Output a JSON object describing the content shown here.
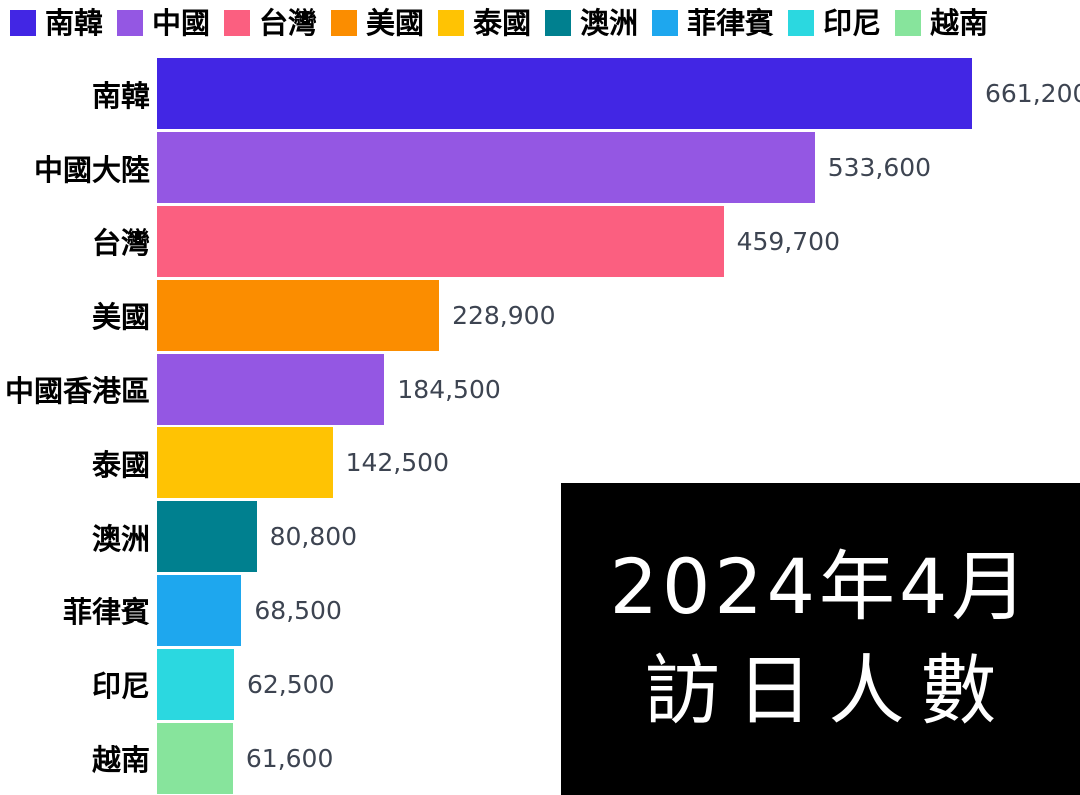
{
  "legend": {
    "items": [
      {
        "label": "南韓",
        "color": "#4226e4"
      },
      {
        "label": "中國",
        "color": "#9457e3"
      },
      {
        "label": "台灣",
        "color": "#fb5f80"
      },
      {
        "label": "美國",
        "color": "#fb8d00"
      },
      {
        "label": "泰國",
        "color": "#ffc303"
      },
      {
        "label": "澳洲",
        "color": "#00808f"
      },
      {
        "label": "菲律賓",
        "color": "#1ea7ee"
      },
      {
        "label": "印尼",
        "color": "#2bd8e0"
      },
      {
        "label": "越南",
        "color": "#87e49c"
      }
    ]
  },
  "chart_data": {
    "type": "bar",
    "orientation": "horizontal",
    "title": "2024年4月 訪日人數",
    "categories": [
      "南韓",
      "中國大陸",
      "台灣",
      "美國",
      "中國香港區",
      "泰國",
      "澳洲",
      "菲律賓",
      "印尼",
      "越南"
    ],
    "values": [
      661200,
      533600,
      459700,
      228900,
      184500,
      142500,
      80800,
      68500,
      62500,
      61600
    ],
    "value_labels": [
      "661,200",
      "533,600",
      "459,700",
      "228,900",
      "184,500",
      "142,500",
      "80,800",
      "68,500",
      "62,500",
      "61,600"
    ],
    "bar_colors": [
      "#4226e4",
      "#9457e3",
      "#fb5f80",
      "#fb8d00",
      "#9457e3",
      "#ffc303",
      "#00808f",
      "#1ea7ee",
      "#2bd8e0",
      "#87e49c"
    ],
    "xlim": [
      0,
      661200
    ],
    "grid": false,
    "legend_position": "top",
    "value_label_color": "#3d4451"
  },
  "overlay": {
    "line1": "2024年4月",
    "line2": "訪日人數",
    "bg": "#000000",
    "text_color": "#ffffff"
  }
}
